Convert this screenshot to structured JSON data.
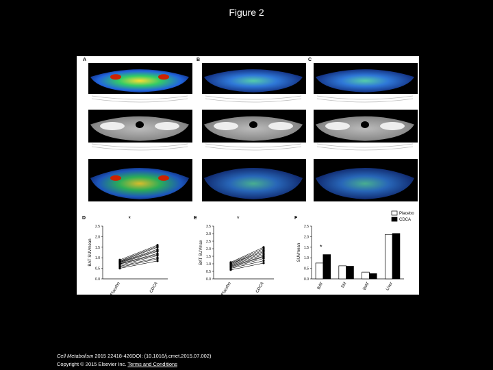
{
  "header": {
    "title": "Figure 2"
  },
  "figure": {
    "image_panels": [
      {
        "label": "A"
      },
      {
        "label": "B"
      },
      {
        "label": "C"
      }
    ],
    "charts": [
      {
        "label": "D",
        "type": "paired",
        "annotation": "*",
        "y_label": "BAT SUVmean",
        "categories": [
          "Placebo",
          "CDCA"
        ],
        "ylim": [
          0,
          2.5
        ],
        "yticks": [
          {
            "value": 0,
            "label": "0.0"
          },
          {
            "value": 0.5,
            "label": "0.5"
          },
          {
            "value": 1,
            "label": "1.0"
          },
          {
            "value": 1.5,
            "label": "1.5"
          },
          {
            "value": 2,
            "label": "2.0"
          },
          {
            "value": 2.5,
            "label": "2.5"
          }
        ],
        "pairs": [
          [
            0.5,
            0.85
          ],
          [
            0.55,
            0.95
          ],
          [
            0.6,
            1.0
          ],
          [
            0.65,
            1.1
          ],
          [
            0.7,
            1.15
          ],
          [
            0.72,
            1.2
          ],
          [
            0.75,
            1.3
          ],
          [
            0.78,
            1.35
          ],
          [
            0.8,
            1.4
          ],
          [
            0.82,
            1.5
          ],
          [
            0.85,
            1.55
          ],
          [
            0.9,
            1.6
          ]
        ]
      },
      {
        "label": "E",
        "type": "paired",
        "annotation": "*",
        "y_label": "BAT SUVmax",
        "categories": [
          "Placebo",
          "CDCA"
        ],
        "ylim": [
          0,
          3.5
        ],
        "yticks": [
          {
            "value": 0,
            "label": "0.0"
          },
          {
            "value": 0.5,
            "label": "0.5"
          },
          {
            "value": 1,
            "label": "1.0"
          },
          {
            "value": 1.5,
            "label": "1.5"
          },
          {
            "value": 2,
            "label": "2.0"
          },
          {
            "value": 2.5,
            "label": "2.5"
          },
          {
            "value": 3,
            "label": "3.0"
          },
          {
            "value": 3.5,
            "label": "3.5"
          }
        ],
        "pairs": [
          [
            0.6,
            1.05
          ],
          [
            0.7,
            1.2
          ],
          [
            0.75,
            1.35
          ],
          [
            0.8,
            1.45
          ],
          [
            0.85,
            1.5
          ],
          [
            0.9,
            1.6
          ],
          [
            0.95,
            1.7
          ],
          [
            1.0,
            1.8
          ],
          [
            1.0,
            1.9
          ],
          [
            1.05,
            2.0
          ],
          [
            1.1,
            2.1
          ]
        ]
      },
      {
        "label": "F",
        "type": "bar",
        "annotation": "*",
        "y_label": "SUVmean",
        "categories": [
          "BAT",
          "SM",
          "WAT",
          "Liver"
        ],
        "ylim": [
          0,
          2.5
        ],
        "yticks": [
          {
            "value": 0,
            "label": "0.0"
          },
          {
            "value": 0.5,
            "label": "0.5"
          },
          {
            "value": 1,
            "label": "1.0"
          },
          {
            "value": 1.5,
            "label": "1.5"
          },
          {
            "value": 2,
            "label": "2.0"
          },
          {
            "value": 2.5,
            "label": "2.5"
          }
        ],
        "series": [
          {
            "name": "Placebo",
            "color": "#ffffff",
            "values": [
              0.75,
              0.62,
              0.32,
              2.1
            ]
          },
          {
            "name": "CDCA",
            "color": "#000000",
            "values": [
              1.15,
              0.6,
              0.25,
              2.15
            ]
          }
        ]
      }
    ]
  },
  "footer": {
    "journal": "Cell Metabolism",
    "citation": "2015 22418-426DOI: (10.1016/j.cmet.2015.07.002)",
    "copyright": "Copyright © 2015 Elsevier Inc.",
    "link": "Terms and Conditions"
  }
}
